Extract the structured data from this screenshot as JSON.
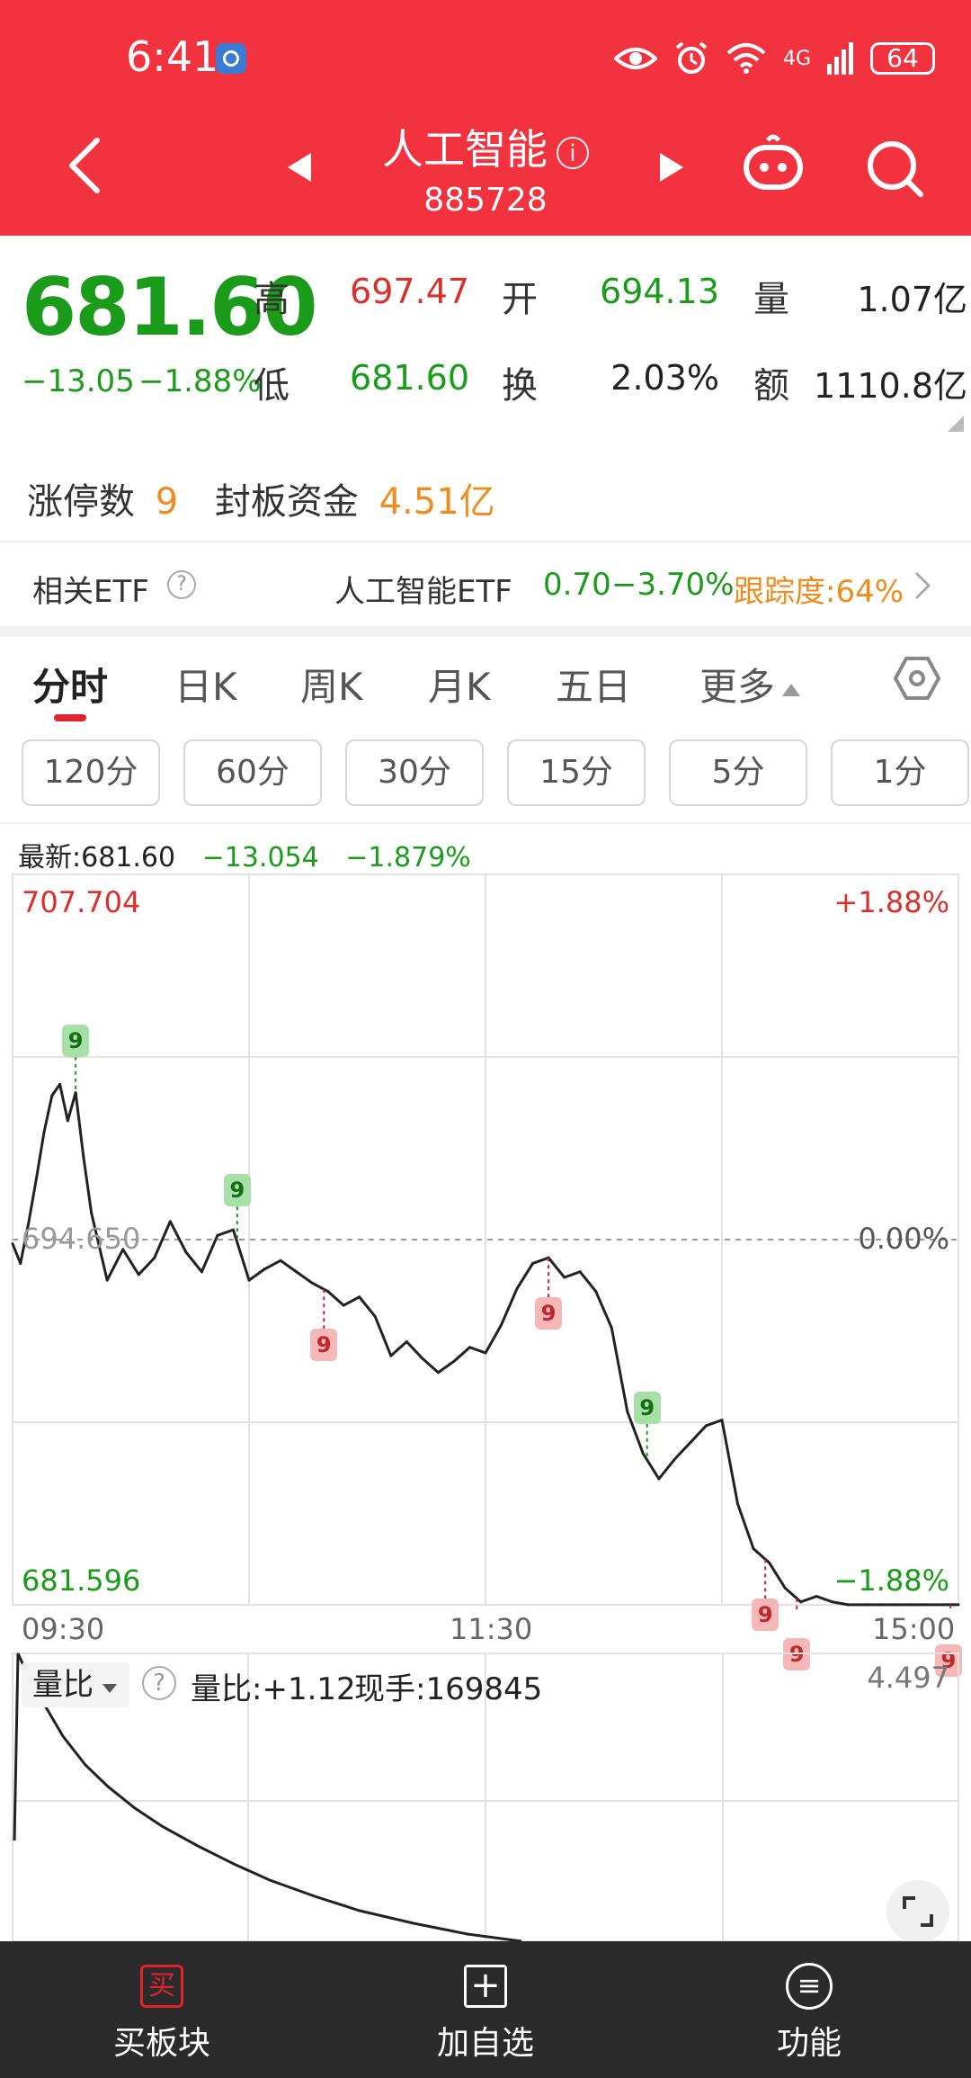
{
  "status_bar": {
    "time": "6:41",
    "network": "4G",
    "battery": "64"
  },
  "header": {
    "title": "人工智能",
    "code": "885728"
  },
  "quote": {
    "price": "681.60",
    "change": "−13.05",
    "change_pct": "−1.88%",
    "high_label": "高",
    "high": "697.47",
    "open_label": "开",
    "open": "694.13",
    "volume_label": "量",
    "volume": "1.07亿",
    "low_label": "低",
    "low": "681.60",
    "turnover_label": "换",
    "turnover": "2.03%",
    "amount_label": "额",
    "amount": "1110.8亿"
  },
  "limit_up": {
    "count_label": "涨停数",
    "count": "9",
    "fund_label": "封板资金",
    "fund": "4.51亿"
  },
  "etf": {
    "label": "相关ETF",
    "name": "人工智能ETF",
    "price": "0.70",
    "change": "−3.70%",
    "tracking": "跟踪度:64%"
  },
  "tabs": [
    {
      "label": "分时"
    },
    {
      "label": "日K"
    },
    {
      "label": "周K"
    },
    {
      "label": "月K"
    },
    {
      "label": "五日"
    },
    {
      "label": "更多"
    }
  ],
  "intervals": [
    {
      "label": "120分"
    },
    {
      "label": "60分"
    },
    {
      "label": "30分"
    },
    {
      "label": "15分"
    },
    {
      "label": "5分"
    },
    {
      "label": "1分"
    }
  ],
  "legend": {
    "latest": "最新:681.60",
    "change": "−13.054",
    "change_pct": "−1.879%"
  },
  "chart_data": {
    "type": "line",
    "title": "",
    "y_max": "707.704",
    "y_mid": "694.650",
    "y_min": "681.596",
    "pct_max": "+1.88%",
    "pct_mid": "0.00%",
    "pct_min": "−1.88%",
    "ylim": [
      681.596,
      707.704
    ],
    "x_labels": [
      "09:30",
      "11:30",
      "15:00"
    ],
    "x_range": [
      0,
      240
    ],
    "series": [
      {
        "x": [
          0,
          2,
          4,
          6,
          8,
          10,
          12,
          14,
          16,
          18,
          20,
          24,
          28,
          32,
          36,
          40,
          44,
          48,
          52,
          56,
          60,
          64,
          68,
          72,
          76,
          80,
          84,
          88,
          92,
          96,
          100,
          104,
          108,
          112,
          116,
          120,
          124,
          128,
          132,
          136,
          140,
          144,
          148,
          152,
          156,
          160,
          164,
          168,
          172,
          176,
          180,
          184,
          188,
          192,
          196,
          200,
          204,
          208,
          212,
          216,
          220,
          224,
          228,
          232,
          236,
          240
        ],
        "y": [
          694.5,
          693.8,
          695.2,
          696.8,
          698.5,
          699.8,
          700.2,
          698.9,
          699.9,
          697.6,
          695.6,
          693.2,
          694.3,
          693.4,
          694.0,
          695.3,
          694.2,
          693.5,
          694.8,
          695.0,
          693.2,
          693.6,
          693.9,
          693.5,
          693.1,
          692.8,
          692.3,
          692.6,
          691.9,
          690.5,
          691.0,
          690.4,
          689.9,
          690.3,
          690.8,
          690.6,
          691.6,
          692.9,
          693.8,
          694.0,
          693.3,
          693.5,
          692.8,
          691.5,
          688.5,
          687.0,
          686.1,
          686.8,
          687.4,
          688.0,
          688.2,
          685.2,
          683.6,
          683.1,
          682.2,
          681.7,
          681.9,
          681.7,
          681.6,
          681.6,
          681.6,
          681.6,
          681.6,
          681.6,
          681.6,
          681.6
        ]
      }
    ],
    "limit_tags": [
      {
        "time": 16,
        "value": "9",
        "type": "up"
      },
      {
        "time": 57,
        "value": "9",
        "type": "up"
      },
      {
        "time": 79,
        "value": "9",
        "type": "down"
      },
      {
        "time": 136,
        "value": "9",
        "type": "down"
      },
      {
        "time": 161,
        "value": "9",
        "type": "up"
      },
      {
        "time": 191,
        "value": "9",
        "type": "down"
      },
      {
        "time": 199,
        "value": "9",
        "type": "down"
      },
      {
        "time": 238,
        "value": "9",
        "type": "down"
      }
    ]
  },
  "volume_panel": {
    "indicator": "量比",
    "ratio": "量比:+1.12",
    "hand": "现手:169845",
    "max": "4.497"
  },
  "bottom_nav": [
    {
      "label": "买板块",
      "icon_char": "买"
    },
    {
      "label": "加自选",
      "icon_char": "+"
    },
    {
      "label": "功能",
      "icon_char": "≡"
    }
  ]
}
